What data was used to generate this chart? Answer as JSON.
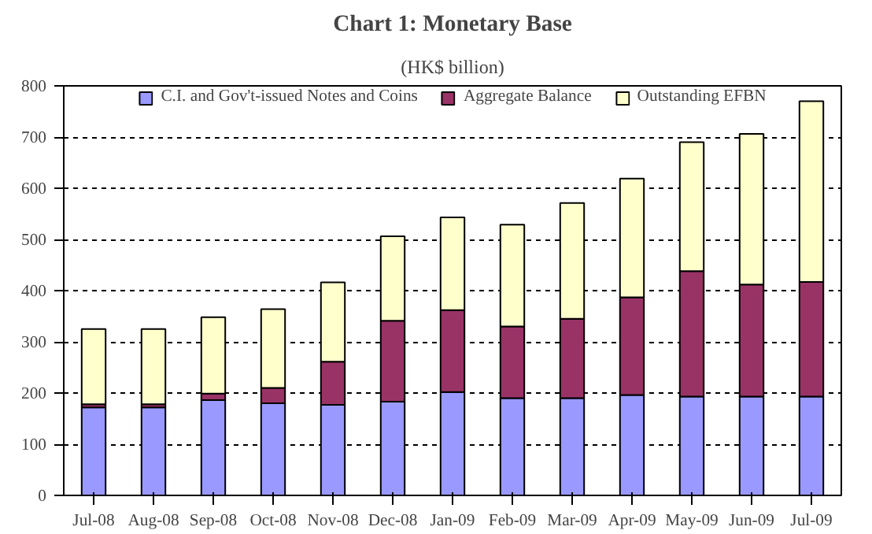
{
  "chart_data": {
    "type": "bar",
    "title": "Chart 1: Monetary Base",
    "subtitle": "(HK$ billion)",
    "categories": [
      "Jul-08",
      "Aug-08",
      "Sep-08",
      "Oct-08",
      "Nov-08",
      "Dec-08",
      "Jan-09",
      "Feb-09",
      "Mar-09",
      "Apr-09",
      "May-09",
      "Jun-09",
      "Jul-09"
    ],
    "stacked": true,
    "series": [
      {
        "name": "C.I. and Gov't-issued Notes and Coins",
        "color": "#9999ff",
        "values": [
          172,
          172,
          186,
          180,
          177,
          183,
          202,
          190,
          190,
          196,
          193,
          193,
          193
        ]
      },
      {
        "name": "Aggregate Balance",
        "color": "#993366",
        "values": [
          6,
          6,
          13,
          30,
          84,
          158,
          160,
          140,
          155,
          191,
          245,
          219,
          224
        ]
      },
      {
        "name": "Outstanding EFBN",
        "color": "#ffffcc",
        "values": [
          147,
          147,
          149,
          154,
          155,
          165,
          181,
          199,
          226,
          232,
          252,
          294,
          353
        ]
      }
    ],
    "ylim": [
      0,
      800
    ],
    "yticks": [
      0,
      100,
      200,
      300,
      400,
      500,
      600,
      700,
      800
    ],
    "grid": "y",
    "legend": "top"
  }
}
